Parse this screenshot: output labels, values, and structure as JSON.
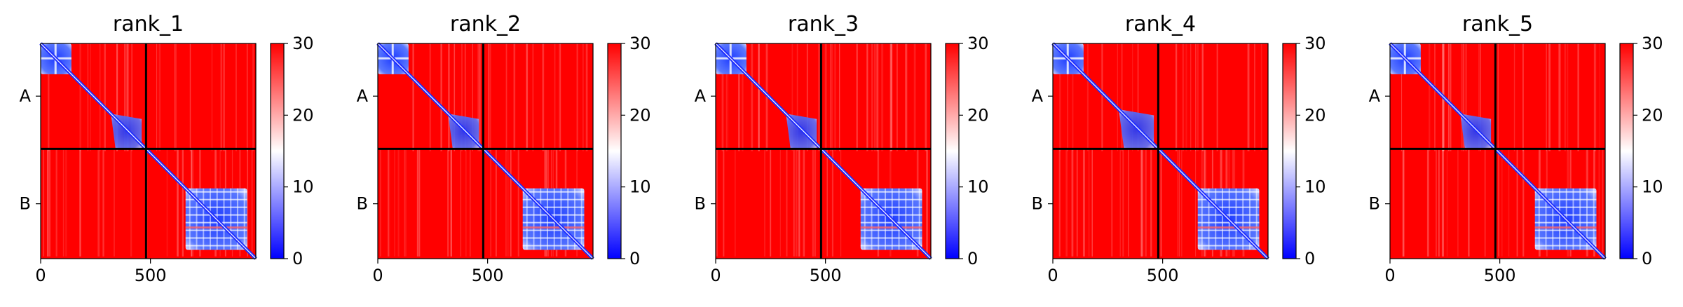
{
  "chart_data": [
    {
      "type": "heatmap",
      "title": "rank_1",
      "x_ticks": [
        "0",
        "500"
      ],
      "y_ticks": [
        "A",
        "B"
      ],
      "chains": [
        "A",
        "B"
      ],
      "chain_boundary": 480,
      "xlim": [
        0,
        980
      ],
      "ylim": [
        0,
        980
      ],
      "color_scale": {
        "min": 0,
        "max": 30,
        "low": "#0000ff",
        "mid": "#ffffff",
        "high": "#ff0000"
      },
      "colorbar_ticks": [
        "0",
        "10",
        "20",
        "30"
      ],
      "low_error_blocks": [
        {
          "x": [
            0,
            140
          ],
          "y": [
            0,
            140
          ]
        },
        {
          "x": [
            320,
            460
          ],
          "y": [
            320,
            480
          ]
        },
        {
          "x": [
            480,
            500
          ],
          "y": [
            480,
            500
          ]
        },
        {
          "x": [
            660,
            940
          ],
          "y": [
            660,
            940
          ]
        }
      ]
    },
    {
      "type": "heatmap",
      "title": "rank_2",
      "x_ticks": [
        "0",
        "500"
      ],
      "y_ticks": [
        "A",
        "B"
      ],
      "chains": [
        "A",
        "B"
      ],
      "chain_boundary": 480,
      "xlim": [
        0,
        980
      ],
      "ylim": [
        0,
        980
      ],
      "color_scale": {
        "min": 0,
        "max": 30,
        "low": "#0000ff",
        "mid": "#ffffff",
        "high": "#ff0000"
      },
      "colorbar_ticks": [
        "0",
        "10",
        "20",
        "30"
      ],
      "low_error_blocks": [
        {
          "x": [
            0,
            140
          ],
          "y": [
            0,
            140
          ]
        },
        {
          "x": [
            320,
            460
          ],
          "y": [
            320,
            480
          ]
        },
        {
          "x": [
            480,
            500
          ],
          "y": [
            480,
            500
          ]
        },
        {
          "x": [
            660,
            940
          ],
          "y": [
            660,
            940
          ]
        }
      ]
    },
    {
      "type": "heatmap",
      "title": "rank_3",
      "x_ticks": [
        "0",
        "500"
      ],
      "y_ticks": [
        "A",
        "B"
      ],
      "chains": [
        "A",
        "B"
      ],
      "chain_boundary": 480,
      "xlim": [
        0,
        980
      ],
      "ylim": [
        0,
        980
      ],
      "color_scale": {
        "min": 0,
        "max": 30,
        "low": "#0000ff",
        "mid": "#ffffff",
        "high": "#ff0000"
      },
      "colorbar_ticks": [
        "0",
        "10",
        "20",
        "30"
      ],
      "low_error_blocks": [
        {
          "x": [
            0,
            140
          ],
          "y": [
            0,
            140
          ]
        },
        {
          "x": [
            320,
            460
          ],
          "y": [
            320,
            480
          ]
        },
        {
          "x": [
            480,
            500
          ],
          "y": [
            480,
            500
          ]
        },
        {
          "x": [
            660,
            940
          ],
          "y": [
            660,
            940
          ]
        }
      ]
    },
    {
      "type": "heatmap",
      "title": "rank_4",
      "x_ticks": [
        "0",
        "500"
      ],
      "y_ticks": [
        "A",
        "B"
      ],
      "chains": [
        "A",
        "B"
      ],
      "chain_boundary": 480,
      "xlim": [
        0,
        980
      ],
      "ylim": [
        0,
        980
      ],
      "color_scale": {
        "min": 0,
        "max": 30,
        "low": "#0000ff",
        "mid": "#ffffff",
        "high": "#ff0000"
      },
      "colorbar_ticks": [
        "0",
        "10",
        "20",
        "30"
      ],
      "low_error_blocks": [
        {
          "x": [
            0,
            140
          ],
          "y": [
            0,
            140
          ]
        },
        {
          "x": [
            300,
            460
          ],
          "y": [
            300,
            480
          ]
        },
        {
          "x": [
            480,
            500
          ],
          "y": [
            480,
            500
          ]
        },
        {
          "x": [
            660,
            940
          ],
          "y": [
            660,
            940
          ]
        }
      ]
    },
    {
      "type": "heatmap",
      "title": "rank_5",
      "x_ticks": [
        "0",
        "500"
      ],
      "y_ticks": [
        "A",
        "B"
      ],
      "chains": [
        "A",
        "B"
      ],
      "chain_boundary": 480,
      "xlim": [
        0,
        980
      ],
      "ylim": [
        0,
        980
      ],
      "color_scale": {
        "min": 0,
        "max": 30,
        "low": "#0000ff",
        "mid": "#ffffff",
        "high": "#ff0000"
      },
      "colorbar_ticks": [
        "0",
        "10",
        "20",
        "30"
      ],
      "low_error_blocks": [
        {
          "x": [
            0,
            140
          ],
          "y": [
            0,
            140
          ]
        },
        {
          "x": [
            320,
            460
          ],
          "y": [
            320,
            480
          ]
        },
        {
          "x": [
            480,
            500
          ],
          "y": [
            480,
            500
          ]
        },
        {
          "x": [
            660,
            940
          ],
          "y": [
            660,
            940
          ]
        }
      ]
    }
  ]
}
